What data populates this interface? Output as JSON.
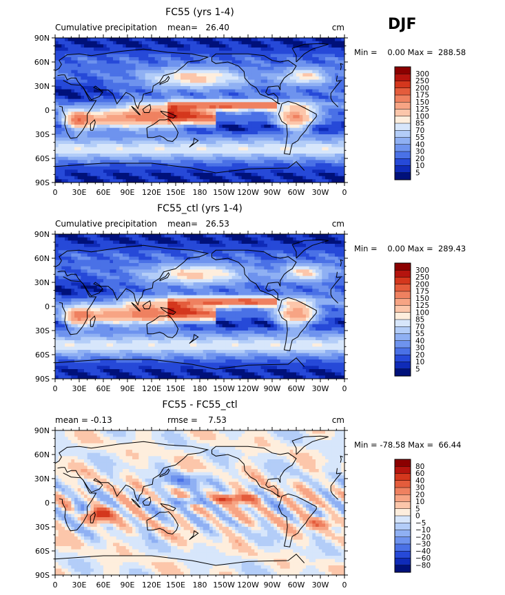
{
  "header": {
    "season": "DJF"
  },
  "axes": {
    "x_ticks": [
      "0",
      "30E",
      "60E",
      "90E",
      "120E",
      "150E",
      "180",
      "150W",
      "120W",
      "90W",
      "60W",
      "30W",
      "0"
    ],
    "y_ticks": [
      "90N",
      "60N",
      "30N",
      "0",
      "30S",
      "60S",
      "90S"
    ]
  },
  "panels": [
    {
      "title": "FC55 (yrs 1-4)",
      "left_label": "Cumulative precipitation",
      "mid_label": "mean=   26.40",
      "units": "cm",
      "stats": "Min =    0.00 Max =  288.58",
      "colorbar_levels": [
        "300",
        "250",
        "200",
        "175",
        "150",
        "125",
        "100",
        "85",
        "70",
        "55",
        "40",
        "30",
        "20",
        "10",
        "5"
      ],
      "colors": [
        "#8b0000",
        "#b5140e",
        "#d4371d",
        "#e45c3c",
        "#ef8160",
        "#f7a484",
        "#fcc6aa",
        "#feeedd",
        "#d7e6fb",
        "#b3cdf8",
        "#8fb0f3",
        "#6e93ee",
        "#4a71e6",
        "#2649d8",
        "#0f2bb8",
        "#00117a"
      ],
      "field": "precip",
      "max_value": 288.58,
      "mean_value": 26.4
    },
    {
      "title": "FC55_ctl (yrs 1-4)",
      "left_label": "Cumulative precipitation",
      "mid_label": "mean=   26.53",
      "units": "cm",
      "stats": "Min =    0.00 Max =  289.43",
      "colorbar_levels": [
        "300",
        "250",
        "200",
        "175",
        "150",
        "125",
        "100",
        "85",
        "70",
        "55",
        "40",
        "30",
        "20",
        "10",
        "5"
      ],
      "colors": [
        "#8b0000",
        "#b5140e",
        "#d4371d",
        "#e45c3c",
        "#ef8160",
        "#f7a484",
        "#fcc6aa",
        "#feeedd",
        "#d7e6fb",
        "#b3cdf8",
        "#8fb0f3",
        "#6e93ee",
        "#4a71e6",
        "#2649d8",
        "#0f2bb8",
        "#00117a"
      ],
      "field": "precip",
      "max_value": 289.43,
      "mean_value": 26.53
    },
    {
      "title": "FC55 - FC55_ctl",
      "left_label": "mean =   -0.13",
      "mid_label": "rmse =    7.53",
      "units": "cm",
      "stats": "Min = -78.58 Max =  66.44",
      "colorbar_levels": [
        "80",
        "60",
        "40",
        "30",
        "20",
        "10",
        "5",
        "0",
        "−5",
        "−10",
        "−20",
        "−30",
        "−40",
        "−60",
        "−80"
      ],
      "colors": [
        "#8b0000",
        "#b5140e",
        "#d4371d",
        "#e45c3c",
        "#ef8160",
        "#f7a484",
        "#fcc6aa",
        "#feeedd",
        "#d7e6fb",
        "#b3cdf8",
        "#8fb0f3",
        "#6e93ee",
        "#4a71e6",
        "#2649d8",
        "#0f2bb8",
        "#00117a"
      ],
      "field": "diff",
      "min_value": -78.58,
      "max_value": 66.44,
      "mean_value": -0.13,
      "rmse_value": 7.53
    }
  ]
}
